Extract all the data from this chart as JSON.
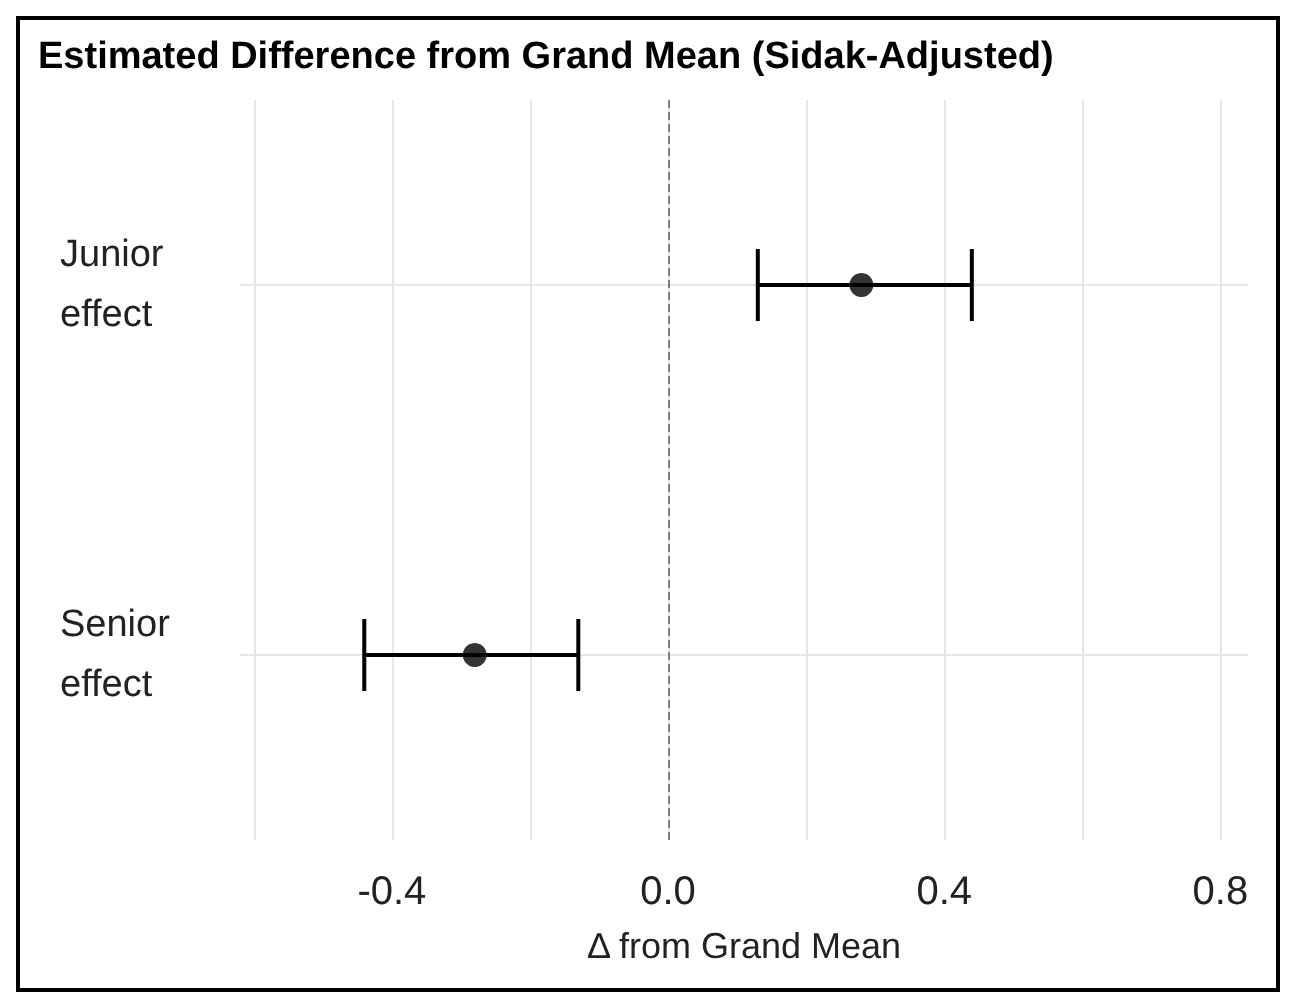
{
  "chart_data": {
    "type": "scatter",
    "title": "Estimated Difference from Grand Mean (Sidak-Adjusted)",
    "xlabel": "Δ from Grand Mean",
    "orientation": "horizontal",
    "categories": [
      "Junior effect",
      "Senior effect"
    ],
    "series": [
      {
        "color": "#000000",
        "values": [
          0.28,
          -0.28
        ],
        "errors": [
          [
            0.13,
            0.44
          ],
          [
            -0.44,
            -0.13
          ]
        ]
      }
    ],
    "xlim": [
      -0.62,
      0.84
    ],
    "xticks": [
      {
        "value": -0.6,
        "label": null
      },
      -0.4,
      {
        "value": -0.2,
        "label": null
      },
      {
        "value": 0,
        "label": "0.0"
      },
      {
        "value": 0.2,
        "label": null
      },
      0.4,
      {
        "value": 0.6,
        "label": null
      },
      0.8
    ],
    "ref_lines": [
      {
        "axis": "x",
        "value": 0,
        "color": "#808080",
        "line_style": "dashed"
      }
    ],
    "grid": true,
    "marker": "circle"
  }
}
